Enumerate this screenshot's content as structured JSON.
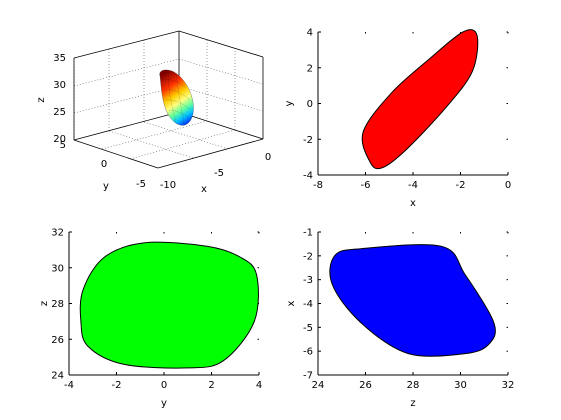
{
  "chart_data": [
    {
      "type": "surface3d",
      "xlabel": "x",
      "ylabel": "y",
      "zlabel": "z",
      "xticks": [
        "-10",
        "-5",
        "0"
      ],
      "yticks": [
        "-5",
        "0",
        "5"
      ],
      "zticks": [
        "20",
        "25",
        "30",
        "35"
      ],
      "xlim": [
        -12,
        0
      ],
      "ylim": [
        -5,
        5
      ],
      "zlim": [
        20,
        35
      ],
      "grid": true,
      "colormap": "jet"
    },
    {
      "type": "filled-ellipse",
      "xlabel": "x",
      "ylabel": "y",
      "xticks": [
        "-8",
        "-6",
        "-4",
        "-2",
        "0"
      ],
      "yticks": [
        "-4",
        "-2",
        "0",
        "2",
        "4"
      ],
      "xlim": [
        -8,
        0
      ],
      "ylim": [
        -4,
        4
      ],
      "color": "#ff0000",
      "outline": [
        [
          -5.8,
          -3.3
        ],
        [
          -5.3,
          -3.6
        ],
        [
          -4.3,
          -2.6
        ],
        [
          -2.6,
          -0.2
        ],
        [
          -1.5,
          1.8
        ],
        [
          -1.3,
          3.8
        ],
        [
          -1.9,
          4.0
        ],
        [
          -3.3,
          2.5
        ],
        [
          -4.9,
          0.6
        ],
        [
          -6.1,
          -1.6
        ]
      ]
    },
    {
      "type": "filled-ellipse",
      "xlabel": "y",
      "ylabel": "z",
      "xticks": [
        "-4",
        "-2",
        "0",
        "2",
        "4"
      ],
      "yticks": [
        "24",
        "26",
        "28",
        "30",
        "32"
      ],
      "xlim": [
        -4,
        4
      ],
      "ylim": [
        24,
        32
      ],
      "color": "#00ff00",
      "outline": [
        [
          -3.5,
          27.0
        ],
        [
          -3.2,
          25.6
        ],
        [
          -1.7,
          24.6
        ],
        [
          1.0,
          24.4
        ],
        [
          2.5,
          24.8
        ],
        [
          3.8,
          27.0
        ],
        [
          3.9,
          29.6
        ],
        [
          3.2,
          30.6
        ],
        [
          1.8,
          31.2
        ],
        [
          -0.8,
          31.4
        ],
        [
          -2.5,
          30.6
        ],
        [
          -3.4,
          28.8
        ]
      ]
    },
    {
      "type": "filled-ellipse",
      "xlabel": "z",
      "ylabel": "x",
      "xticks": [
        "24",
        "26",
        "28",
        "30",
        "32"
      ],
      "yticks": [
        "-7",
        "-6",
        "-5",
        "-4",
        "-3",
        "-2",
        "-1"
      ],
      "xlim": [
        24,
        32
      ],
      "ylim": [
        -7,
        -1
      ],
      "color": "#0000ff",
      "outline": [
        [
          24.7,
          -2.0
        ],
        [
          25.8,
          -1.7
        ],
        [
          29.2,
          -1.6
        ],
        [
          30.2,
          -2.8
        ],
        [
          31.4,
          -4.8
        ],
        [
          31.2,
          -5.7
        ],
        [
          30.2,
          -6.1
        ],
        [
          27.8,
          -6.1
        ],
        [
          25.8,
          -4.8
        ],
        [
          24.6,
          -3.2
        ]
      ]
    }
  ]
}
